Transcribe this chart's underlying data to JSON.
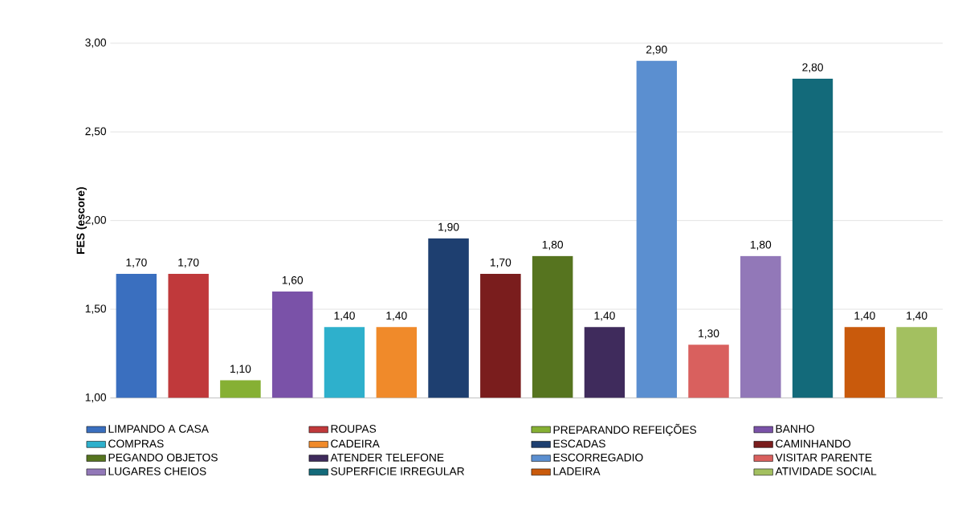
{
  "chart_data": {
    "type": "bar",
    "ylabel": "FES (escore)",
    "categories": [
      null
    ],
    "series": [
      {
        "name": "LIMPANDO A CASA",
        "color": "#3a6fbf",
        "values": [
          1.7
        ],
        "value_labels": [
          "1,70"
        ]
      },
      {
        "name": "ROUPAS",
        "color": "#c0393b",
        "values": [
          1.7
        ],
        "value_labels": [
          "1,70"
        ]
      },
      {
        "name": "PREPARANDO REFEIÇÕES",
        "color": "#86b034",
        "values": [
          1.1
        ],
        "value_labels": [
          "1,10"
        ]
      },
      {
        "name": "BANHO",
        "color": "#7a52a8",
        "values": [
          1.6
        ],
        "value_labels": [
          "1,60"
        ]
      },
      {
        "name": "COMPRAS",
        "color": "#2eb0cc",
        "values": [
          1.4
        ],
        "value_labels": [
          "1,40"
        ]
      },
      {
        "name": "CADEIRA",
        "color": "#f08a2a",
        "values": [
          1.4
        ],
        "value_labels": [
          "1,40"
        ]
      },
      {
        "name": "ESCADAS",
        "color": "#1e3f70",
        "values": [
          1.9
        ],
        "value_labels": [
          "1,90"
        ]
      },
      {
        "name": "CAMINHANDO",
        "color": "#7a1d1d",
        "values": [
          1.7
        ],
        "value_labels": [
          "1,70"
        ]
      },
      {
        "name": "PEGANDO OBJETOS",
        "color": "#56741f",
        "values": [
          1.8
        ],
        "value_labels": [
          "1,80"
        ]
      },
      {
        "name": "ATENDER TELEFONE",
        "color": "#3f2b5c",
        "values": [
          1.4
        ],
        "value_labels": [
          "1,40"
        ]
      },
      {
        "name": "ESCORREGADIO",
        "color": "#5b8fd0",
        "values": [
          2.9
        ],
        "value_labels": [
          "2,90"
        ]
      },
      {
        "name": "VISITAR PARENTE",
        "color": "#d9605e",
        "values": [
          1.3
        ],
        "value_labels": [
          "1,30"
        ]
      },
      {
        "name": "LUGARES CHEIOS",
        "color": "#9278b8",
        "values": [
          1.8
        ],
        "value_labels": [
          "1,80"
        ]
      },
      {
        "name": "SUPERFICIE IRREGULAR",
        "color": "#136a7a",
        "values": [
          2.8
        ],
        "value_labels": [
          "2,80"
        ]
      },
      {
        "name": "LADEIRA",
        "color": "#c95a0c",
        "values": [
          1.4
        ],
        "value_labels": [
          "1,40"
        ]
      },
      {
        "name": "ATIVIDADE SOCIAL",
        "color": "#a3c060",
        "values": [
          1.4
        ],
        "value_labels": [
          "1,40"
        ]
      }
    ],
    "ylim": [
      1,
      3
    ],
    "yticks": [
      {
        "value": 1,
        "label": "1,00"
      },
      {
        "value": 1.5,
        "label": "1,50"
      },
      {
        "value": 2,
        "label": "2,00"
      },
      {
        "value": 2.5,
        "label": "2,50"
      },
      {
        "value": 3,
        "label": "3,00"
      }
    ],
    "grid": "y",
    "legend": "bottom",
    "tick_labels": "y"
  }
}
